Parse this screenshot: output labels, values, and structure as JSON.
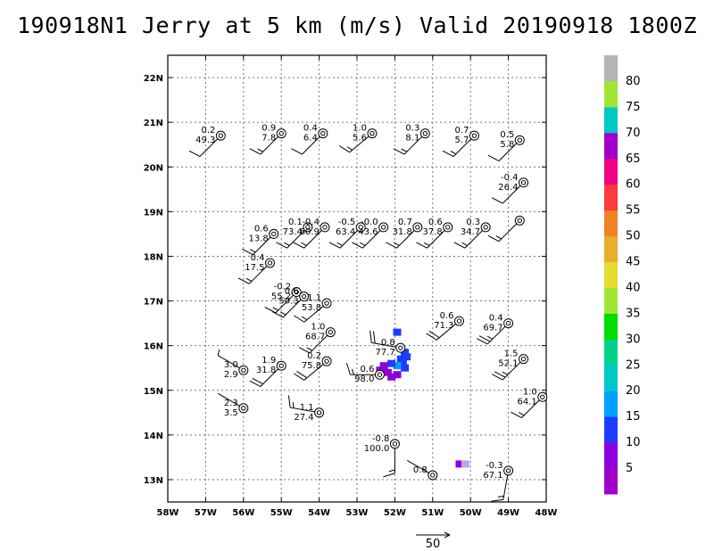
{
  "title": "190918N1 Jerry at 5 km (m/s) Valid 20190918 1800Z",
  "chart_data": {
    "type": "scatter",
    "title": "190918N1 Jerry at 5 km (m/s) Valid 20190918 1800Z",
    "xlim": [
      -58,
      -48
    ],
    "ylim": [
      12.5,
      22.5
    ],
    "x_ticks": [
      -58,
      -57,
      -56,
      -55,
      -54,
      -53,
      -52,
      -51,
      -50,
      -49,
      -48
    ],
    "x_tick_labels": [
      "58W",
      "57W",
      "56W",
      "55W",
      "54W",
      "53W",
      "52W",
      "51W",
      "50W",
      "49W",
      "48W"
    ],
    "y_ticks": [
      13,
      14,
      15,
      16,
      17,
      18,
      19,
      20,
      21,
      22
    ],
    "y_tick_labels": [
      "13N",
      "14N",
      "15N",
      "16N",
      "17N",
      "18N",
      "19N",
      "20N",
      "21N",
      "22N"
    ],
    "grid": true,
    "wind_reference": {
      "label": "50",
      "value": 50
    },
    "colorbar": {
      "labels": [
        "5",
        "10",
        "15",
        "20",
        "25",
        "30",
        "35",
        "40",
        "45",
        "50",
        "55",
        "60",
        "65",
        "70",
        "75",
        "80"
      ],
      "colors": [
        "#a000c8",
        "#8c00dc",
        "#1e3cff",
        "#00a0ff",
        "#00c8c8",
        "#00d28c",
        "#00dc00",
        "#a0e632",
        "#e6dc32",
        "#e6af2d",
        "#f08228",
        "#fa3c3c",
        "#f00082",
        "#a000c8",
        "#00c8c8",
        "#a0e632",
        "#b4b4b4"
      ]
    },
    "observations": [
      {
        "lon": -56.6,
        "lat": 20.7,
        "top": "0.2",
        "bottom": "49.3",
        "dir": 225,
        "spd": 10
      },
      {
        "lon": -55.0,
        "lat": 20.75,
        "top": "0.9",
        "bottom": "7.8",
        "dir": 225,
        "spd": 15
      },
      {
        "lon": -53.9,
        "lat": 20.75,
        "top": "0.4",
        "bottom": "6.4",
        "dir": 225,
        "spd": 10
      },
      {
        "lon": -52.6,
        "lat": 20.75,
        "top": "1.0",
        "bottom": "5.6",
        "dir": 230,
        "spd": 15
      },
      {
        "lon": -51.2,
        "lat": 20.75,
        "top": "0.3",
        "bottom": "8.1",
        "dir": 225,
        "spd": 15
      },
      {
        "lon": -49.9,
        "lat": 20.7,
        "top": "0.7",
        "bottom": "5.7",
        "dir": 225,
        "spd": 15
      },
      {
        "lon": -48.7,
        "lat": 20.6,
        "top": "0.5",
        "bottom": "5.8",
        "dir": 225,
        "spd": 10
      },
      {
        "lon": -48.6,
        "lat": 19.65,
        "top": "-0.4",
        "bottom": "26.4",
        "dir": 225,
        "spd": 10
      },
      {
        "lon": -55.2,
        "lat": 18.5,
        "top": "0.6",
        "bottom": "13.8",
        "dir": 225,
        "spd": 15
      },
      {
        "lon": -54.3,
        "lat": 18.65,
        "top": "0.1",
        "bottom": "73.4",
        "dir": 225,
        "spd": 15
      },
      {
        "lon": -53.85,
        "lat": 18.65,
        "top": "-0.4",
        "bottom": "60.9",
        "dir": 225,
        "spd": 15
      },
      {
        "lon": -52.9,
        "lat": 18.65,
        "top": "-0.5",
        "bottom": "63.4",
        "dir": 225,
        "spd": 15
      },
      {
        "lon": -52.3,
        "lat": 18.65,
        "top": "-0.0",
        "bottom": "43.6",
        "dir": 225,
        "spd": 15
      },
      {
        "lon": -51.4,
        "lat": 18.65,
        "top": "0.7",
        "bottom": "31.8",
        "dir": 225,
        "spd": 15
      },
      {
        "lon": -50.6,
        "lat": 18.65,
        "top": "0.6",
        "bottom": "37.8",
        "dir": 225,
        "spd": 15
      },
      {
        "lon": -49.6,
        "lat": 18.65,
        "top": "0.3",
        "bottom": "34.7",
        "dir": 225,
        "spd": 15
      },
      {
        "lon": -48.7,
        "lat": 18.8,
        "top": "",
        "bottom": "",
        "dir": 225,
        "spd": 15
      },
      {
        "lon": -55.3,
        "lat": 17.85,
        "top": "0.4",
        "bottom": "17.5",
        "dir": 225,
        "spd": 15
      },
      {
        "lon": -54.6,
        "lat": 17.2,
        "top": "-0.2",
        "bottom": "55.2",
        "dir": 225,
        "spd": 15
      },
      {
        "lon": -54.4,
        "lat": 17.1,
        "top": "0.6",
        "bottom": "50.3",
        "dir": 225,
        "spd": 15
      },
      {
        "lon": -53.8,
        "lat": 16.95,
        "top": "1.1",
        "bottom": "53.8",
        "dir": 230,
        "spd": 15
      },
      {
        "lon": -53.7,
        "lat": 16.3,
        "top": "1.0",
        "bottom": "68.7",
        "dir": 225,
        "spd": 15
      },
      {
        "lon": -51.85,
        "lat": 15.95,
        "top": "0.8",
        "bottom": "77.7",
        "dir": 280,
        "spd": 20
      },
      {
        "lon": -50.3,
        "lat": 16.55,
        "top": "0.6",
        "bottom": "71.3",
        "dir": 230,
        "spd": 20
      },
      {
        "lon": -49.0,
        "lat": 16.5,
        "top": "0.4",
        "bottom": "69.7",
        "dir": 225,
        "spd": 25
      },
      {
        "lon": -48.6,
        "lat": 15.7,
        "top": "1.5",
        "bottom": "52.1",
        "dir": 225,
        "spd": 25
      },
      {
        "lon": -56.0,
        "lat": 15.45,
        "top": "3.0",
        "bottom": "2.9",
        "dir": 300,
        "spd": 5
      },
      {
        "lon": -55.0,
        "lat": 15.55,
        "top": "1.9",
        "bottom": "31.8",
        "dir": 225,
        "spd": 20
      },
      {
        "lon": -53.8,
        "lat": 15.65,
        "top": "0.2",
        "bottom": "75.8",
        "dir": 230,
        "spd": 20
      },
      {
        "lon": -52.4,
        "lat": 15.35,
        "top": "0.6",
        "bottom": "98.0",
        "dir": 270,
        "spd": 15
      },
      {
        "lon": -48.1,
        "lat": 14.85,
        "top": "1.0",
        "bottom": "64.1",
        "dir": 225,
        "spd": 15
      },
      {
        "lon": -56.0,
        "lat": 14.6,
        "top": "2.3",
        "bottom": "3.5",
        "dir": 300,
        "spd": 0
      },
      {
        "lon": -54.0,
        "lat": 14.5,
        "top": "1.1",
        "bottom": "27.4",
        "dir": 280,
        "spd": 15
      },
      {
        "lon": -52.0,
        "lat": 13.8,
        "top": "-0.8",
        "bottom": "100.0",
        "dir": 180,
        "spd": 15
      },
      {
        "lon": -51.0,
        "lat": 13.1,
        "top": "0.8",
        "bottom": "",
        "dir": 300,
        "spd": 0
      },
      {
        "lon": -49.0,
        "lat": 13.2,
        "top": "-0.3",
        "bottom": "67.1",
        "dir": 190,
        "spd": 15
      }
    ],
    "cells": [
      {
        "lon": -51.95,
        "lat": 16.3,
        "color": "#1e3cff"
      },
      {
        "lon": -51.75,
        "lat": 15.85,
        "color": "#1e3cff"
      },
      {
        "lon": -51.7,
        "lat": 15.75,
        "color": "#1e3cff"
      },
      {
        "lon": -51.85,
        "lat": 15.7,
        "color": "#1e3cff"
      },
      {
        "lon": -51.8,
        "lat": 15.6,
        "color": "#1e3cff"
      },
      {
        "lon": -51.75,
        "lat": 15.5,
        "color": "#1e3cff"
      },
      {
        "lon": -51.95,
        "lat": 15.55,
        "color": "#00a0ff"
      },
      {
        "lon": -52.1,
        "lat": 15.6,
        "color": "#1e3cff"
      },
      {
        "lon": -52.3,
        "lat": 15.55,
        "color": "#8c00dc"
      },
      {
        "lon": -52.4,
        "lat": 15.45,
        "color": "#8c00dc"
      },
      {
        "lon": -52.2,
        "lat": 15.4,
        "color": "#8c00dc"
      },
      {
        "lon": -52.1,
        "lat": 15.3,
        "color": "#8c00dc"
      },
      {
        "lon": -51.95,
        "lat": 15.35,
        "color": "#8c00dc"
      },
      {
        "lon": -50.3,
        "lat": 13.35,
        "color": "#8c00dc"
      },
      {
        "lon": -50.15,
        "lat": 13.35,
        "color": "#c8a0e6"
      }
    ]
  }
}
